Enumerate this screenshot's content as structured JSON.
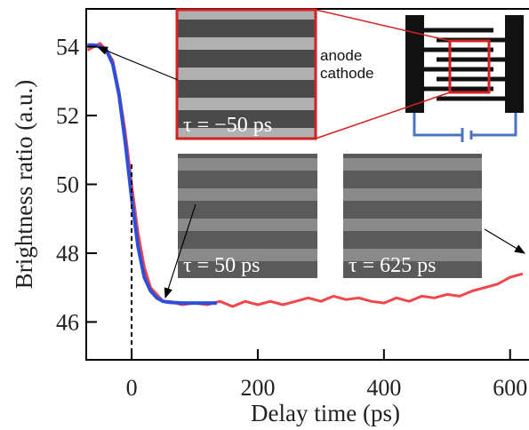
{
  "chart_data": {
    "type": "line",
    "xlabel": "Delay time (ps)",
    "ylabel": "Brightness ratio (a.u.)",
    "xlim": [
      -72,
      630
    ],
    "ylim": [
      44.9,
      55.1
    ],
    "xticks": [
      0,
      200,
      400,
      600
    ],
    "yticks": [
      46,
      48,
      50,
      52,
      54
    ],
    "annotations": [
      "anode",
      "cathode",
      "τ = −50 ps",
      "τ = 50 ps",
      "τ = 625 ps"
    ],
    "series": [
      {
        "color": "#f0474c",
        "x": [
          -70,
          -60,
          -50,
          -40,
          -30,
          -20,
          -10,
          0,
          10,
          20,
          30,
          40,
          50,
          60,
          70,
          80,
          100,
          120,
          140,
          160,
          180,
          200,
          220,
          240,
          260,
          280,
          300,
          320,
          340,
          360,
          380,
          400,
          420,
          440,
          460,
          480,
          500,
          520,
          540,
          560,
          580,
          600,
          620
        ],
        "values": [
          53.9,
          54.0,
          54.1,
          53.9,
          53.6,
          52.7,
          51.5,
          50.0,
          48.6,
          47.6,
          47.0,
          46.8,
          46.6,
          46.6,
          46.55,
          46.5,
          46.55,
          46.5,
          46.6,
          46.45,
          46.6,
          46.5,
          46.6,
          46.5,
          46.6,
          46.7,
          46.6,
          46.75,
          46.65,
          46.7,
          46.6,
          46.55,
          46.7,
          46.6,
          46.75,
          46.7,
          46.8,
          46.75,
          46.9,
          47.0,
          47.1,
          47.3,
          47.4
        ]
      },
      {
        "color": "#2f4fd8",
        "x": [
          -70,
          -60,
          -50,
          -40,
          -30,
          -20,
          -10,
          0,
          10,
          20,
          30,
          40,
          50,
          60,
          80,
          100,
          120,
          135
        ],
        "values": [
          54.05,
          54.05,
          54.0,
          53.9,
          53.5,
          52.6,
          51.2,
          49.6,
          48.2,
          47.3,
          46.9,
          46.7,
          46.6,
          46.57,
          46.55,
          46.55,
          46.55,
          46.55
        ]
      }
    ]
  }
}
